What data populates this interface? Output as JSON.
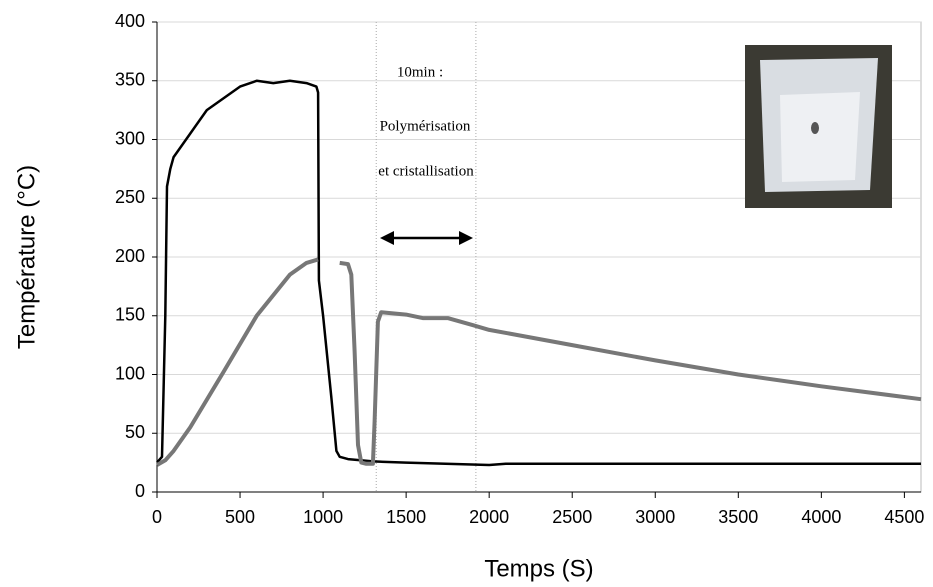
{
  "chart_data": {
    "type": "line",
    "xlabel": "Temps (S)",
    "ylabel": "Température (°C)",
    "annotations": [
      "10min :",
      "Polymérisation",
      "et cristallisation"
    ],
    "xlim": [
      0,
      4600
    ],
    "ylim": [
      0,
      400
    ],
    "xticks": [
      0,
      500,
      1000,
      1500,
      2000,
      2500,
      3000,
      3500,
      4000,
      4500
    ],
    "yticks": [
      0,
      50,
      100,
      150,
      200,
      250,
      300,
      350,
      400
    ],
    "grid": true,
    "vlines": [
      1320,
      1920
    ],
    "series": [
      {
        "color": "#000000",
        "x": [
          0,
          30,
          50,
          60,
          80,
          100,
          150,
          200,
          300,
          400,
          500,
          600,
          700,
          800,
          900,
          960,
          970,
          975,
          1000,
          1050,
          1080,
          1100,
          1150,
          1300,
          1500,
          2000,
          2100,
          3000,
          4000,
          4600
        ],
        "values": [
          25,
          30,
          150,
          260,
          275,
          285,
          295,
          305,
          325,
          335,
          345,
          350,
          348,
          350,
          348,
          345,
          340,
          180,
          150,
          80,
          35,
          30,
          28,
          26,
          25,
          23,
          24,
          24,
          24,
          24
        ]
      },
      {
        "color": "#777777",
        "x": [
          0,
          50,
          100,
          200,
          400,
          600,
          800,
          900,
          970,
          1000,
          1100,
          1150,
          1170,
          1190,
          1210,
          1230,
          1260,
          1300,
          1310,
          1330,
          1350,
          1500,
          1600,
          1750,
          1900,
          2000,
          2500,
          3000,
          3500,
          4000,
          4600
        ],
        "values": [
          23,
          27,
          35,
          55,
          102,
          150,
          185,
          195,
          198,
          null,
          195,
          194,
          185,
          120,
          40,
          25,
          24,
          24,
          60,
          145,
          153,
          151,
          148,
          148,
          142,
          138,
          125,
          112,
          100,
          90,
          79
        ]
      }
    ]
  }
}
